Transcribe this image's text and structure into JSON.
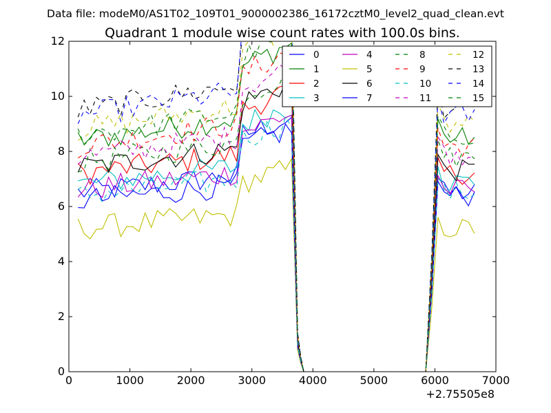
{
  "chart_data": {
    "type": "line",
    "suptitle": "Data file: modeM0/AS1T02_109T01_9000002386_16172cztM0_level2_quad_clean.evt",
    "title": "Quadrant 1 module wise count rates with 100.0s bins.",
    "xlabel": "",
    "ylabel": "",
    "x_offset_label": "+2.75505e8",
    "xlim": [
      0,
      7000
    ],
    "ylim": [
      0,
      12
    ],
    "xticks": [
      0,
      1000,
      2000,
      3000,
      4000,
      5000,
      6000,
      7000
    ],
    "xtick_labels": [
      "0",
      "1000",
      "2000",
      "3000",
      "4000",
      "5000",
      "6000",
      "7000"
    ],
    "yticks": [
      0,
      2,
      4,
      6,
      8,
      10,
      12
    ],
    "ytick_labels": [
      "0",
      "2",
      "4",
      "6",
      "8",
      "10",
      "12"
    ],
    "grid": false,
    "legend": {
      "position": "top-right",
      "columns": 4
    },
    "segment1": {
      "x_start": 150,
      "x_step": 100,
      "n": 36
    },
    "drop": {
      "x": [
        3750,
        3800,
        3850
      ],
      "fraction": [
        0.15,
        0.06,
        0
      ]
    },
    "gap_zero": [
      3900,
      5800
    ],
    "segment2": {
      "x_start": 5850,
      "x_step": 100,
      "n": 9,
      "rise_fraction": [
        0,
        0.45
      ]
    },
    "series": [
      {
        "name": "0",
        "color": "#0000ff",
        "dash": "solid",
        "level1": 6.5,
        "level2": 6.5
      },
      {
        "name": "1",
        "color": "#008000",
        "dash": "solid",
        "level1": 8.4,
        "level2": 8.5
      },
      {
        "name": "2",
        "color": "#ff0000",
        "dash": "solid",
        "level1": 7.2,
        "level2": 7.2
      },
      {
        "name": "3",
        "color": "#00bfbf",
        "dash": "solid",
        "level1": 6.8,
        "level2": 6.9
      },
      {
        "name": "4",
        "color": "#bf00bf",
        "dash": "solid",
        "level1": 6.6,
        "level2": 6.6
      },
      {
        "name": "5",
        "color": "#bfbf00",
        "dash": "solid",
        "level1": 5.2,
        "level2": 5.2
      },
      {
        "name": "6",
        "color": "#000000",
        "dash": "solid",
        "level1": 7.4,
        "level2": 7.3
      },
      {
        "name": "7",
        "color": "#0000ff",
        "dash": "solid",
        "level1": 6.2,
        "level2": 6.4
      },
      {
        "name": "8",
        "color": "#008000",
        "dash": "dashed",
        "level1": 7.6,
        "level2": 7.8
      },
      {
        "name": "9",
        "color": "#ff0000",
        "dash": "dashed",
        "level1": 8.2,
        "level2": 8.2
      },
      {
        "name": "10",
        "color": "#00bfbf",
        "dash": "dashed",
        "level1": 6.4,
        "level2": 6.5
      },
      {
        "name": "11",
        "color": "#bf00bf",
        "dash": "dashed",
        "level1": 7.8,
        "level2": 7.9
      },
      {
        "name": "12",
        "color": "#bfbf00",
        "dash": "dashed",
        "level1": 8.8,
        "level2": 9.0
      },
      {
        "name": "13",
        "color": "#000000",
        "dash": "dashed",
        "level1": 9.5,
        "level2": 9.6
      },
      {
        "name": "14",
        "color": "#0000ff",
        "dash": "dashed",
        "level1": 9.3,
        "level2": 9.3
      },
      {
        "name": "15",
        "color": "#008000",
        "dash": "dashed",
        "level1": 8.6,
        "level2": 8.6
      }
    ]
  }
}
